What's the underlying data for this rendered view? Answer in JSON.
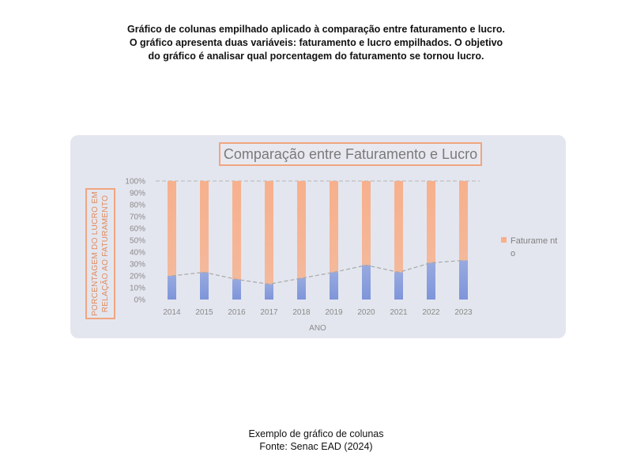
{
  "heading": {
    "line1": "Gráfico de colunas empilhado aplicado à comparação entre faturamento e lucro.",
    "line2": "O gráfico apresenta duas variáveis: faturamento e lucro empilhados. O objetivo",
    "line3": "do gráfico é analisar qual porcentagem do faturamento se tornou lucro."
  },
  "footer": {
    "caption": "Exemplo de gráfico de colunas",
    "source": "Fonte: Senac EAD (2024)"
  },
  "colors": {
    "panel_background": "#e4e6ef",
    "title_border": "#f0a57f",
    "faturamento_bar": "#f7b08c",
    "lucro_bar": "#7e95da",
    "trend_line": "#a8a8a8",
    "gridline": "#b5b5b5"
  },
  "chart_data": {
    "type": "bar",
    "stacked": true,
    "title": "Comparação entre Faturamento e Lucro",
    "ylabel_lines": [
      "PORCENTAGEM DO LUCRO EM",
      "RELAÇÃO AO FATURAMENTO"
    ],
    "xlabel": "ANO",
    "categories": [
      "2014",
      "2015",
      "2016",
      "2017",
      "2018",
      "2019",
      "2020",
      "2021",
      "2022",
      "2023"
    ],
    "yticks": [
      "0%",
      "10%",
      "20%",
      "30%",
      "40%",
      "50%",
      "60%",
      "70%",
      "80%",
      "90%",
      "100%"
    ],
    "ylim": [
      0,
      100
    ],
    "series": [
      {
        "values": [
          20,
          23,
          17,
          13,
          18,
          23,
          29,
          23,
          31,
          33
        ]
      },
      {
        "name": "Faturamento",
        "values": [
          80,
          77,
          83,
          87,
          82,
          77,
          71,
          77,
          69,
          67
        ]
      }
    ],
    "trend_line": "dashed line through lucro values",
    "grid": "dashed line at 100%",
    "legend": {
      "position": "right",
      "label": "Faturame nto"
    }
  }
}
